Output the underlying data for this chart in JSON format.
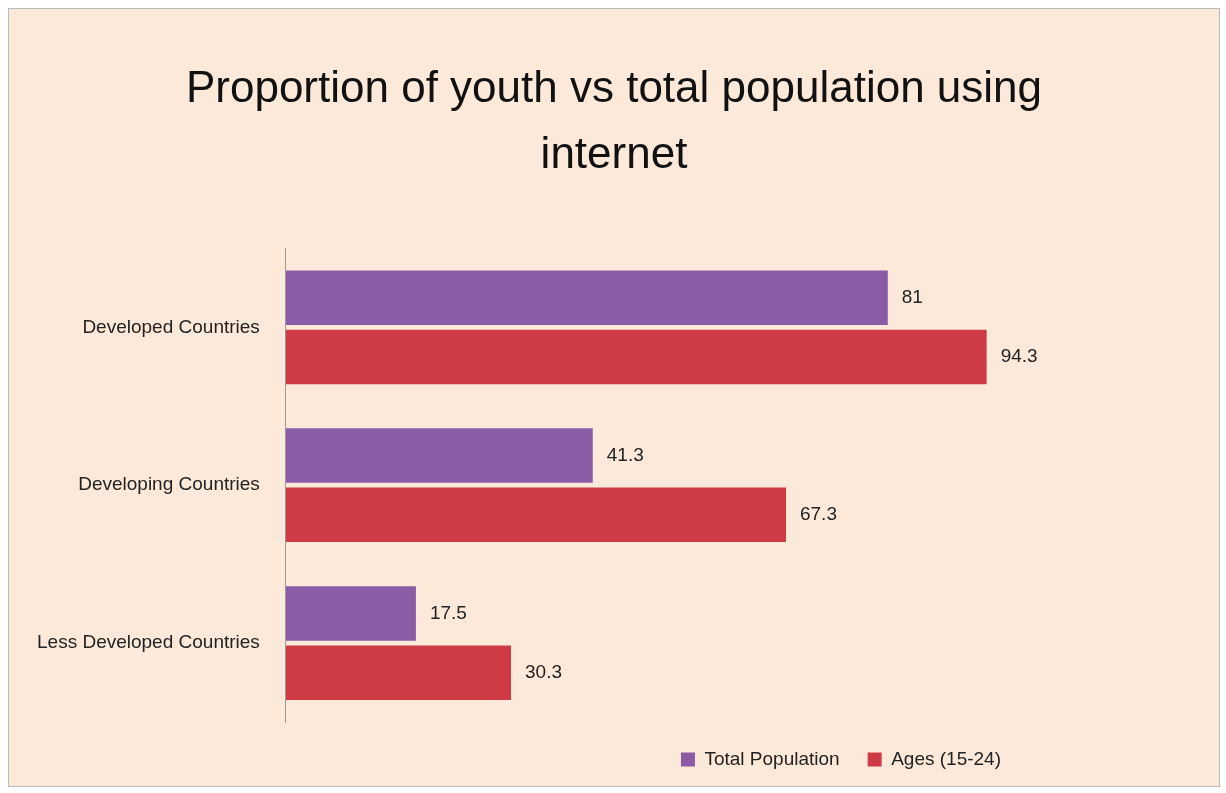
{
  "chart_data": {
    "type": "bar",
    "orientation": "horizontal",
    "title": "Proportion  of youth vs total population using internet",
    "categories": [
      "Developed Countries",
      "Developing Countries",
      "Less Developed Countries"
    ],
    "series": [
      {
        "name": "Total Population",
        "color": "#8b5ba5",
        "values": [
          81,
          41.3,
          17.5
        ]
      },
      {
        "name": "Ages (15-24)",
        "color": "#cf3b45",
        "values": [
          94.3,
          67.3,
          30.3
        ]
      }
    ],
    "data_labels": true,
    "legend": "bottom right",
    "tick_labels": "y"
  }
}
